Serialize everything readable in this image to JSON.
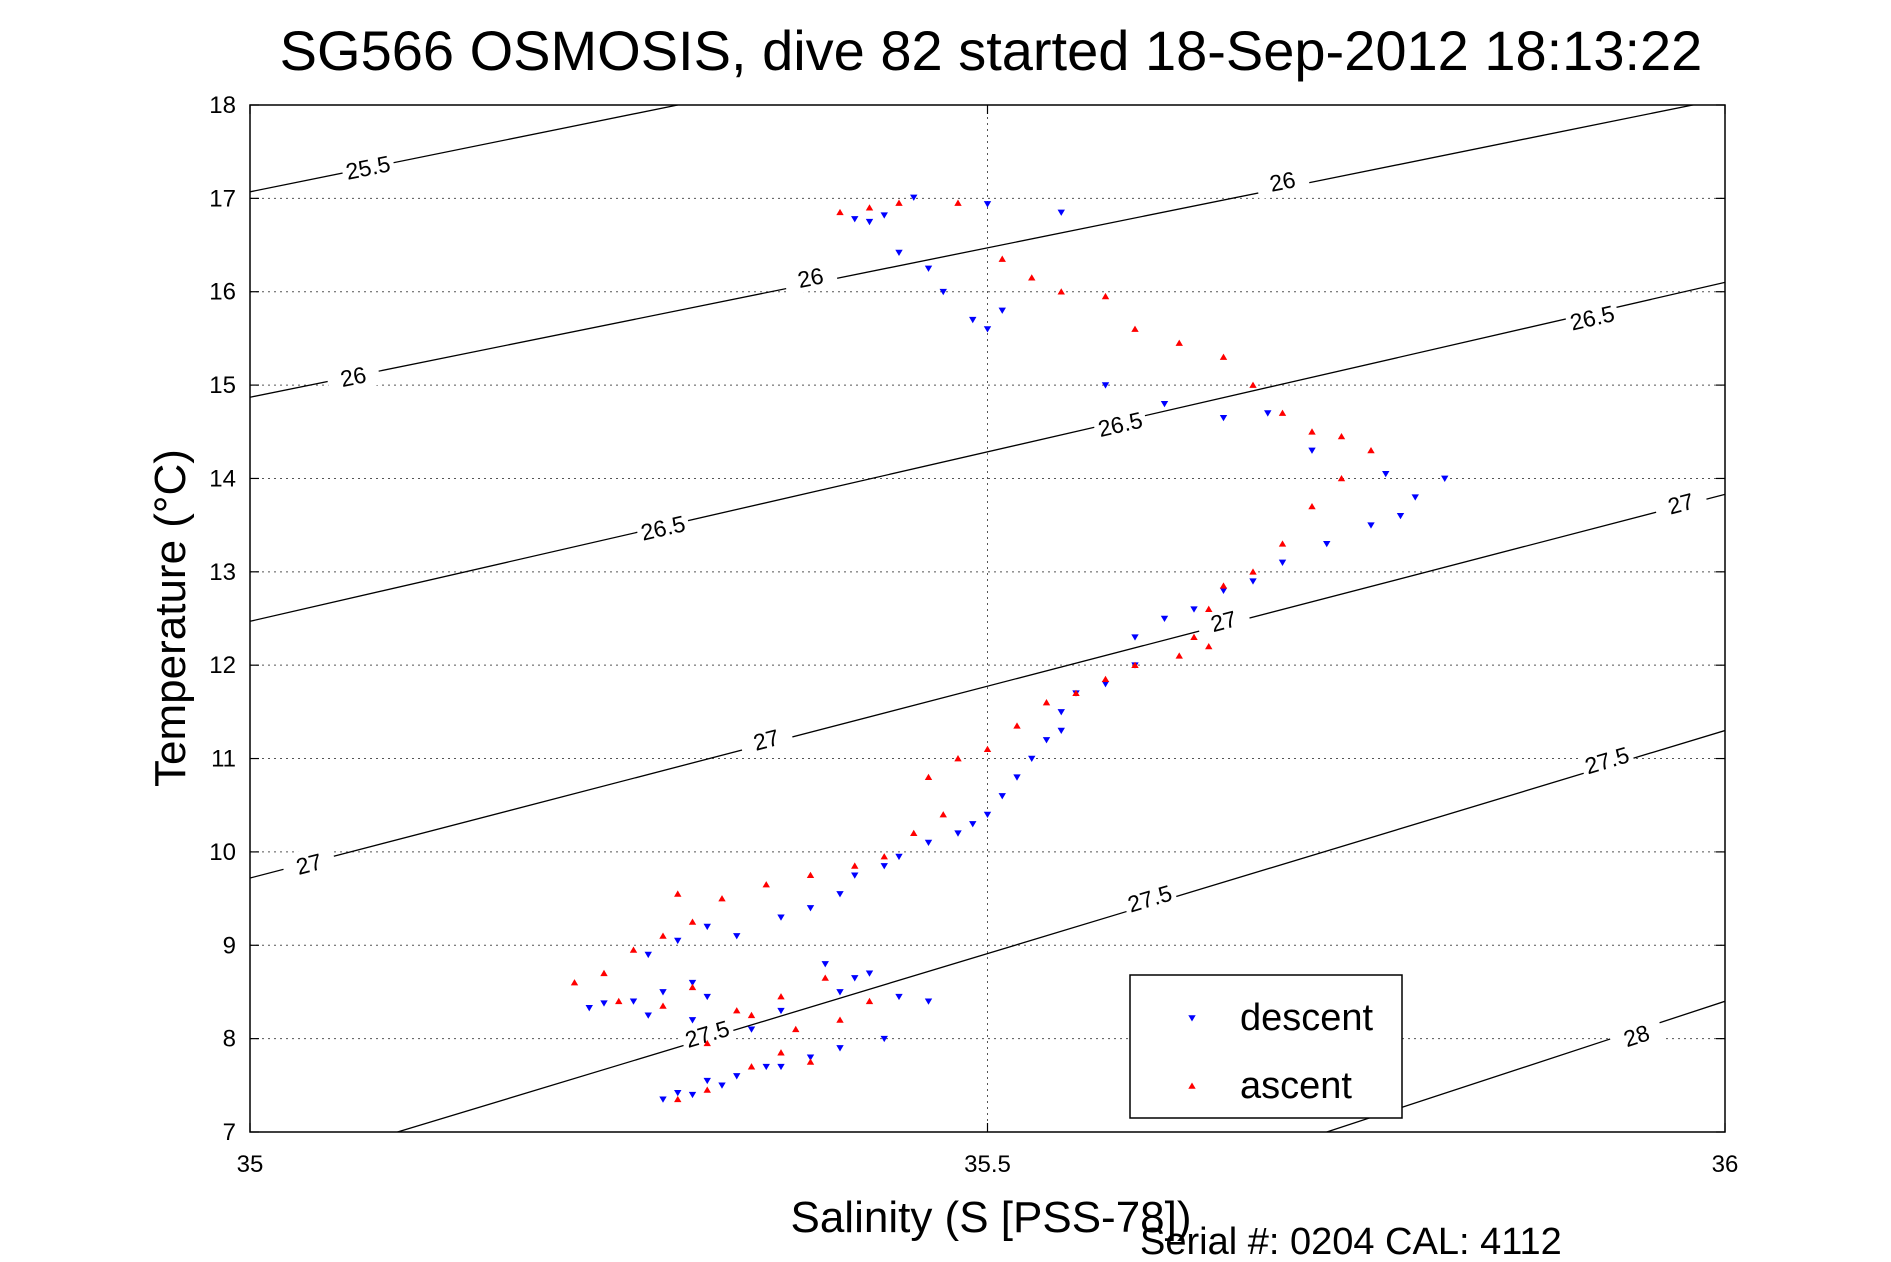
{
  "chart_data": {
    "type": "scatter",
    "title": "SG566 OSMOSIS, dive 82 started 18-Sep-2012 18:13:22",
    "xlabel": "Salinity (S [PSS-78])",
    "ylabel": "Temperature (°C)",
    "footer": "Serial #: 0204  CAL: 4112",
    "xlim": [
      35,
      36
    ],
    "ylim": [
      7,
      18
    ],
    "x_ticks": [
      35,
      35.5,
      36
    ],
    "x_tick_labels": [
      "35",
      "35.5",
      "36"
    ],
    "y_ticks": [
      7,
      8,
      9,
      10,
      11,
      12,
      13,
      14,
      15,
      16,
      17,
      18
    ],
    "y_tick_labels": [
      "7",
      "8",
      "9",
      "10",
      "11",
      "12",
      "13",
      "14",
      "15",
      "16",
      "17",
      "18"
    ],
    "grid": true,
    "legend_position": "bottom-right",
    "density_contours": [
      {
        "value": 25.5,
        "label": "25.5",
        "points": [
          [
            35.0,
            17.07
          ],
          [
            35.29,
            18.0
          ]
        ],
        "label_pos": [
          [
            35.08,
            17.33
          ]
        ]
      },
      {
        "value": 26.0,
        "label": "26",
        "points": [
          [
            35.0,
            14.87
          ],
          [
            36.0,
            18.07
          ]
        ],
        "label_pos": [
          [
            35.07,
            15.09
          ],
          [
            35.38,
            16.15
          ],
          [
            35.7,
            17.18
          ]
        ]
      },
      {
        "value": 26.5,
        "label": "26.5",
        "points": [
          [
            35.0,
            12.47
          ],
          [
            36.0,
            16.1
          ]
        ],
        "label_pos": [
          [
            35.28,
            13.47
          ],
          [
            35.59,
            14.58
          ],
          [
            35.91,
            15.72
          ]
        ]
      },
      {
        "value": 27.0,
        "label": "27",
        "points": [
          [
            35.0,
            9.72
          ],
          [
            36.0,
            13.83
          ]
        ],
        "label_pos": [
          [
            35.04,
            9.87
          ],
          [
            35.35,
            11.2
          ],
          [
            35.66,
            12.47
          ],
          [
            35.97,
            13.73
          ]
        ]
      },
      {
        "value": 27.5,
        "label": "27.5",
        "points": [
          [
            35.1,
            7.0
          ],
          [
            36.0,
            11.3
          ]
        ],
        "label_pos": [
          [
            35.31,
            8.05
          ],
          [
            35.61,
            9.5
          ],
          [
            35.92,
            10.98
          ]
        ]
      },
      {
        "value": 28.0,
        "label": "28",
        "points": [
          [
            35.73,
            7.0
          ],
          [
            36.0,
            8.4
          ]
        ],
        "label_pos": [
          [
            35.94,
            8.03
          ]
        ]
      }
    ],
    "series": [
      {
        "name": "descent",
        "color": "#0000ff",
        "marker": "triangle-down",
        "x": [
          35.41,
          35.43,
          35.45,
          35.42,
          35.44,
          35.46,
          35.47,
          35.49,
          35.5,
          35.5,
          35.51,
          35.55,
          35.58,
          35.62,
          35.66,
          35.69,
          35.72,
          35.77,
          35.81,
          35.79,
          35.78,
          35.76,
          35.73,
          35.7,
          35.68,
          35.66,
          35.64,
          35.62,
          35.6,
          35.6,
          35.58,
          35.56,
          35.55,
          35.55,
          35.54,
          35.53,
          35.52,
          35.51,
          35.5,
          35.49,
          35.48,
          35.46,
          35.44,
          35.43,
          35.41,
          35.4,
          35.38,
          35.36,
          35.33,
          35.31,
          35.29,
          35.27,
          35.3,
          35.31,
          35.28,
          35.26,
          35.24,
          35.23,
          35.27,
          35.3,
          35.34,
          35.36,
          35.4,
          35.42,
          35.44,
          35.46,
          35.43,
          35.4,
          35.38,
          35.36,
          35.39,
          35.41,
          35.33,
          35.3,
          35.28,
          35.32,
          35.35,
          35.31,
          35.29
        ],
        "y": [
          16.78,
          16.82,
          17.01,
          16.75,
          16.42,
          16.25,
          16.0,
          15.7,
          15.6,
          16.94,
          15.8,
          16.85,
          15.0,
          14.8,
          14.65,
          14.7,
          14.3,
          14.05,
          14.0,
          13.8,
          13.6,
          13.5,
          13.3,
          13.1,
          12.9,
          12.8,
          12.6,
          12.5,
          12.3,
          12.0,
          11.8,
          11.7,
          11.5,
          11.3,
          11.2,
          11.0,
          10.8,
          10.6,
          10.4,
          10.3,
          10.2,
          10.1,
          9.95,
          9.85,
          9.75,
          9.55,
          9.4,
          9.3,
          9.1,
          9.2,
          9.05,
          8.9,
          8.6,
          8.45,
          8.5,
          8.4,
          8.38,
          8.33,
          8.25,
          8.2,
          8.1,
          8.3,
          8.5,
          8.7,
          8.45,
          8.4,
          8.0,
          7.9,
          7.8,
          7.7,
          8.8,
          8.65,
          7.6,
          7.4,
          7.35,
          7.5,
          7.7,
          7.55,
          7.42
        ]
      },
      {
        "name": "ascent",
        "color": "#ff0000",
        "marker": "triangle-up",
        "x": [
          35.4,
          35.42,
          35.44,
          35.48,
          35.51,
          35.53,
          35.55,
          35.58,
          35.6,
          35.63,
          35.66,
          35.68,
          35.7,
          35.72,
          35.74,
          35.76,
          35.74,
          35.72,
          35.7,
          35.68,
          35.66,
          35.65,
          35.64,
          35.65,
          35.63,
          35.6,
          35.58,
          35.56,
          35.54,
          35.52,
          35.5,
          35.48,
          35.46,
          35.47,
          35.45,
          35.43,
          35.41,
          35.38,
          35.35,
          35.32,
          35.3,
          35.29,
          35.28,
          35.26,
          35.24,
          35.22,
          35.25,
          35.28,
          35.3,
          35.33,
          35.36,
          35.39,
          35.42,
          35.4,
          35.37,
          35.34,
          35.31,
          35.36,
          35.38,
          35.34,
          35.31,
          35.29
        ],
        "y": [
          16.85,
          16.9,
          16.95,
          16.95,
          16.35,
          16.15,
          16.0,
          15.95,
          15.6,
          15.45,
          15.3,
          15.0,
          14.7,
          14.5,
          14.45,
          14.3,
          14.0,
          13.7,
          13.3,
          13.0,
          12.85,
          12.6,
          12.3,
          12.2,
          12.1,
          12.0,
          11.85,
          11.7,
          11.6,
          11.35,
          11.1,
          11.0,
          10.8,
          10.4,
          10.2,
          9.95,
          9.85,
          9.75,
          9.65,
          9.5,
          9.25,
          9.55,
          9.1,
          8.95,
          8.7,
          8.6,
          8.4,
          8.35,
          8.55,
          8.3,
          8.45,
          8.65,
          8.4,
          8.2,
          8.1,
          8.25,
          7.95,
          7.85,
          7.75,
          7.7,
          7.45,
          7.35
        ]
      }
    ]
  }
}
